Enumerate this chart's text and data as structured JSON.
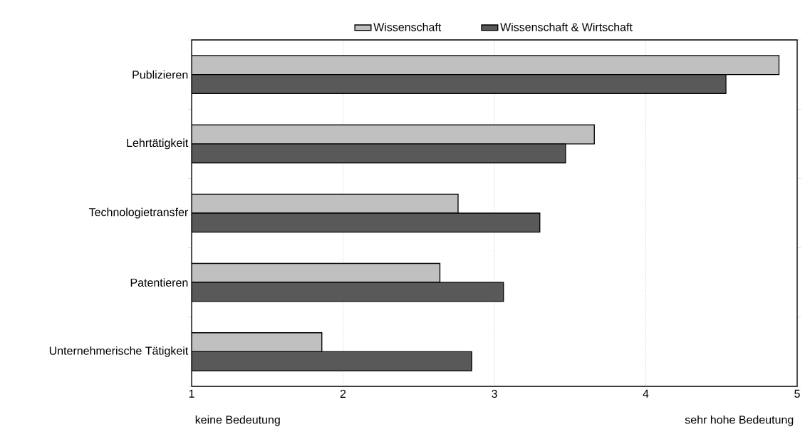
{
  "chart_data": {
    "type": "bar",
    "orientation": "horizontal",
    "categories": [
      "Publizieren",
      "Lehrtätigkeit",
      "Technologietransfer",
      "Patentieren",
      "Unternehmerische Tätigkeit"
    ],
    "series": [
      {
        "name": "Wissenschaft",
        "color": "#c0c0c0",
        "values": [
          4.88,
          3.66,
          2.76,
          2.64,
          1.86
        ]
      },
      {
        "name": "Wissenschaft & Wirtschaft",
        "color": "#595959",
        "values": [
          4.53,
          3.47,
          3.3,
          3.06,
          2.85
        ]
      }
    ],
    "xlim": [
      1,
      5
    ],
    "xticks": [
      1,
      2,
      3,
      4,
      5
    ],
    "grid": "x",
    "legend": "top",
    "annotations": [
      "keine Bedeutung",
      "sehr hohe Bedeutung"
    ]
  }
}
